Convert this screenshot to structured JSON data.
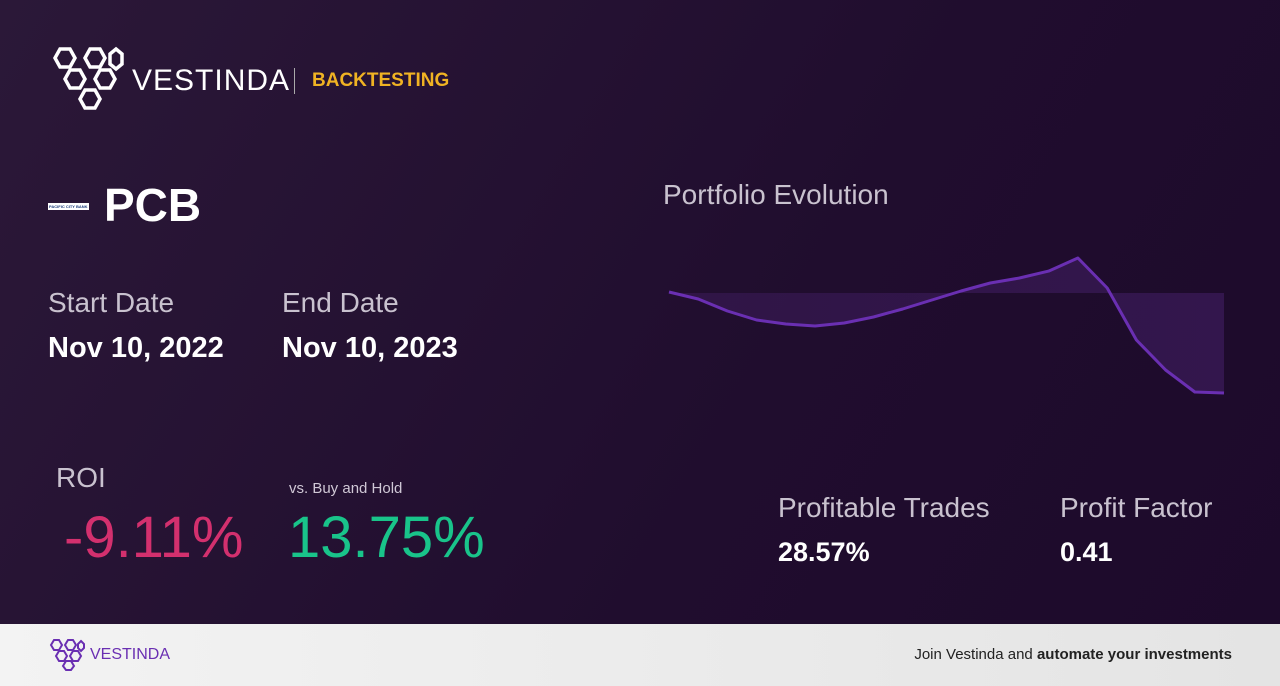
{
  "header": {
    "brand": "VESTINDA",
    "section": "BACKTESTING"
  },
  "ticker": {
    "logo_text": "PACIFIC CITY BANK",
    "symbol": "PCB"
  },
  "dates": {
    "start_label": "Start Date",
    "start_value": "Nov 10, 2022",
    "end_label": "End Date",
    "end_value": "Nov 10, 2023"
  },
  "roi": {
    "label": "ROI",
    "value": "-9.11%",
    "compare_label": "vs. Buy and Hold",
    "compare_value": "13.75%"
  },
  "stats": {
    "profitable_trades_label": "Profitable Trades",
    "profitable_trades_value": "28.57%",
    "profit_factor_label": "Profit Factor",
    "profit_factor_value": "0.41"
  },
  "chart_data": {
    "type": "area",
    "title": "Portfolio Evolution",
    "color": "#6a2fb2",
    "values": [
      0.09,
      -0.55,
      -1.64,
      -2.46,
      -2.82,
      -3.01,
      -2.73,
      -2.19,
      -1.46,
      -0.64,
      0.18,
      0.91,
      1.37,
      2.0,
      3.19,
      0.46,
      -4.28,
      -7.01,
      -9.02,
      -9.11
    ]
  },
  "footer": {
    "brand": "VESTINDA",
    "cta_prefix": "Join Vestinda and",
    "cta_bold": "automate your investments"
  }
}
